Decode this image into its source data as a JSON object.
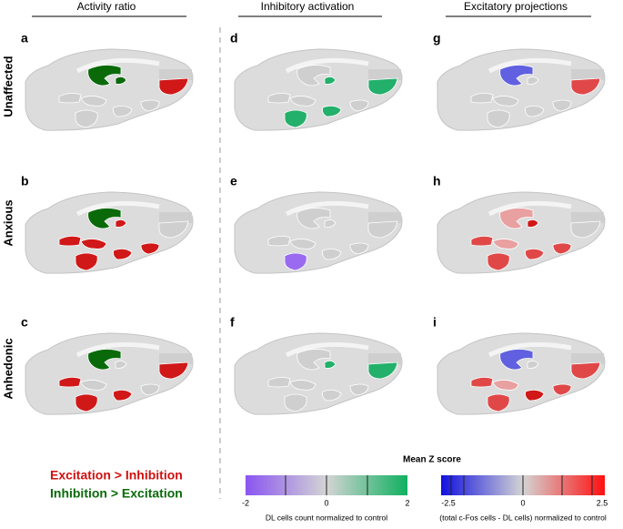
{
  "headers": {
    "col1": "Activity ratio",
    "col2": "Inhibitory activation",
    "col3": "Excitatory projections"
  },
  "rows": [
    "Unaffected",
    "Anxious",
    "Anhedonic"
  ],
  "panels": [
    "a",
    "d",
    "g",
    "b",
    "e",
    "h",
    "c",
    "f",
    "i"
  ],
  "legend": {
    "excitation": "Excitation > Inhibition",
    "inhibition": "Inhibition > Excitation"
  },
  "colorbar": {
    "title": "Mean Z score",
    "left": {
      "ticks": [
        "-2",
        "0",
        "2"
      ],
      "caption": "DL cells count normalized to control"
    },
    "right": {
      "ticks": [
        "-2.5",
        "0",
        "2.5"
      ],
      "caption": "(total c-Fos cells - DL cells) normalized to control"
    }
  }
}
